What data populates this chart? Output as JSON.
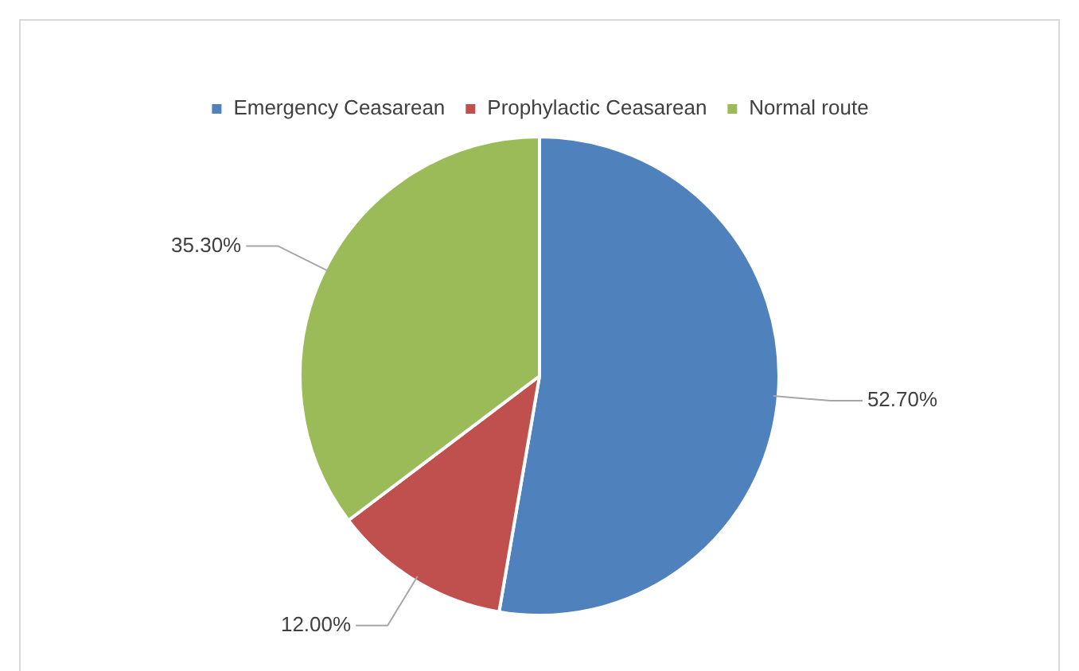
{
  "chart_data": {
    "type": "pie",
    "categories": [
      "Emergency Ceasarean",
      "Prophylactic Ceasarean",
      "Normal route"
    ],
    "values": [
      52.7,
      12.0,
      35.3
    ],
    "colors": [
      "#4f81bd",
      "#c0504d",
      "#9bbb59"
    ],
    "value_labels": [
      "52.70%",
      "12.00%",
      "35.30%"
    ],
    "legend": "top"
  }
}
